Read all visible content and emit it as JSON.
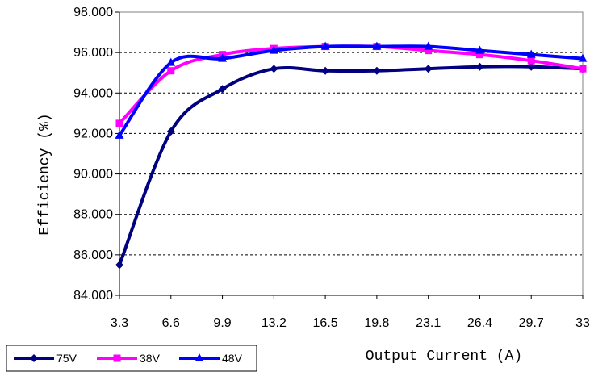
{
  "chart_data": {
    "type": "line",
    "title": "",
    "xlabel": "Output Current (A)",
    "ylabel": "Efficiency (%)",
    "categories": [
      "3.3",
      "6.6",
      "9.9",
      "13.2",
      "16.5",
      "19.8",
      "23.1",
      "26.4",
      "29.7",
      "33"
    ],
    "ylim": [
      84.0,
      98.0
    ],
    "yticks": [
      "84.000",
      "86.000",
      "88.000",
      "90.000",
      "92.000",
      "94.000",
      "96.000",
      "98.000"
    ],
    "grid": "horizontal-dashed",
    "legend_position": "bottom-left",
    "series": [
      {
        "name": "75V",
        "color": "#000080",
        "marker": "diamond",
        "values": [
          85.5,
          92.1,
          94.2,
          95.2,
          95.1,
          95.1,
          95.2,
          95.3,
          95.3,
          95.2
        ]
      },
      {
        "name": "38V",
        "color": "#ff00ff",
        "marker": "square",
        "values": [
          92.5,
          95.1,
          95.9,
          96.2,
          96.3,
          96.3,
          96.1,
          95.9,
          95.6,
          95.2
        ]
      },
      {
        "name": "48V",
        "color": "#0000ff",
        "marker": "triangle",
        "values": [
          91.9,
          95.5,
          95.7,
          96.1,
          96.3,
          96.3,
          96.3,
          96.1,
          95.9,
          95.7
        ]
      }
    ]
  }
}
